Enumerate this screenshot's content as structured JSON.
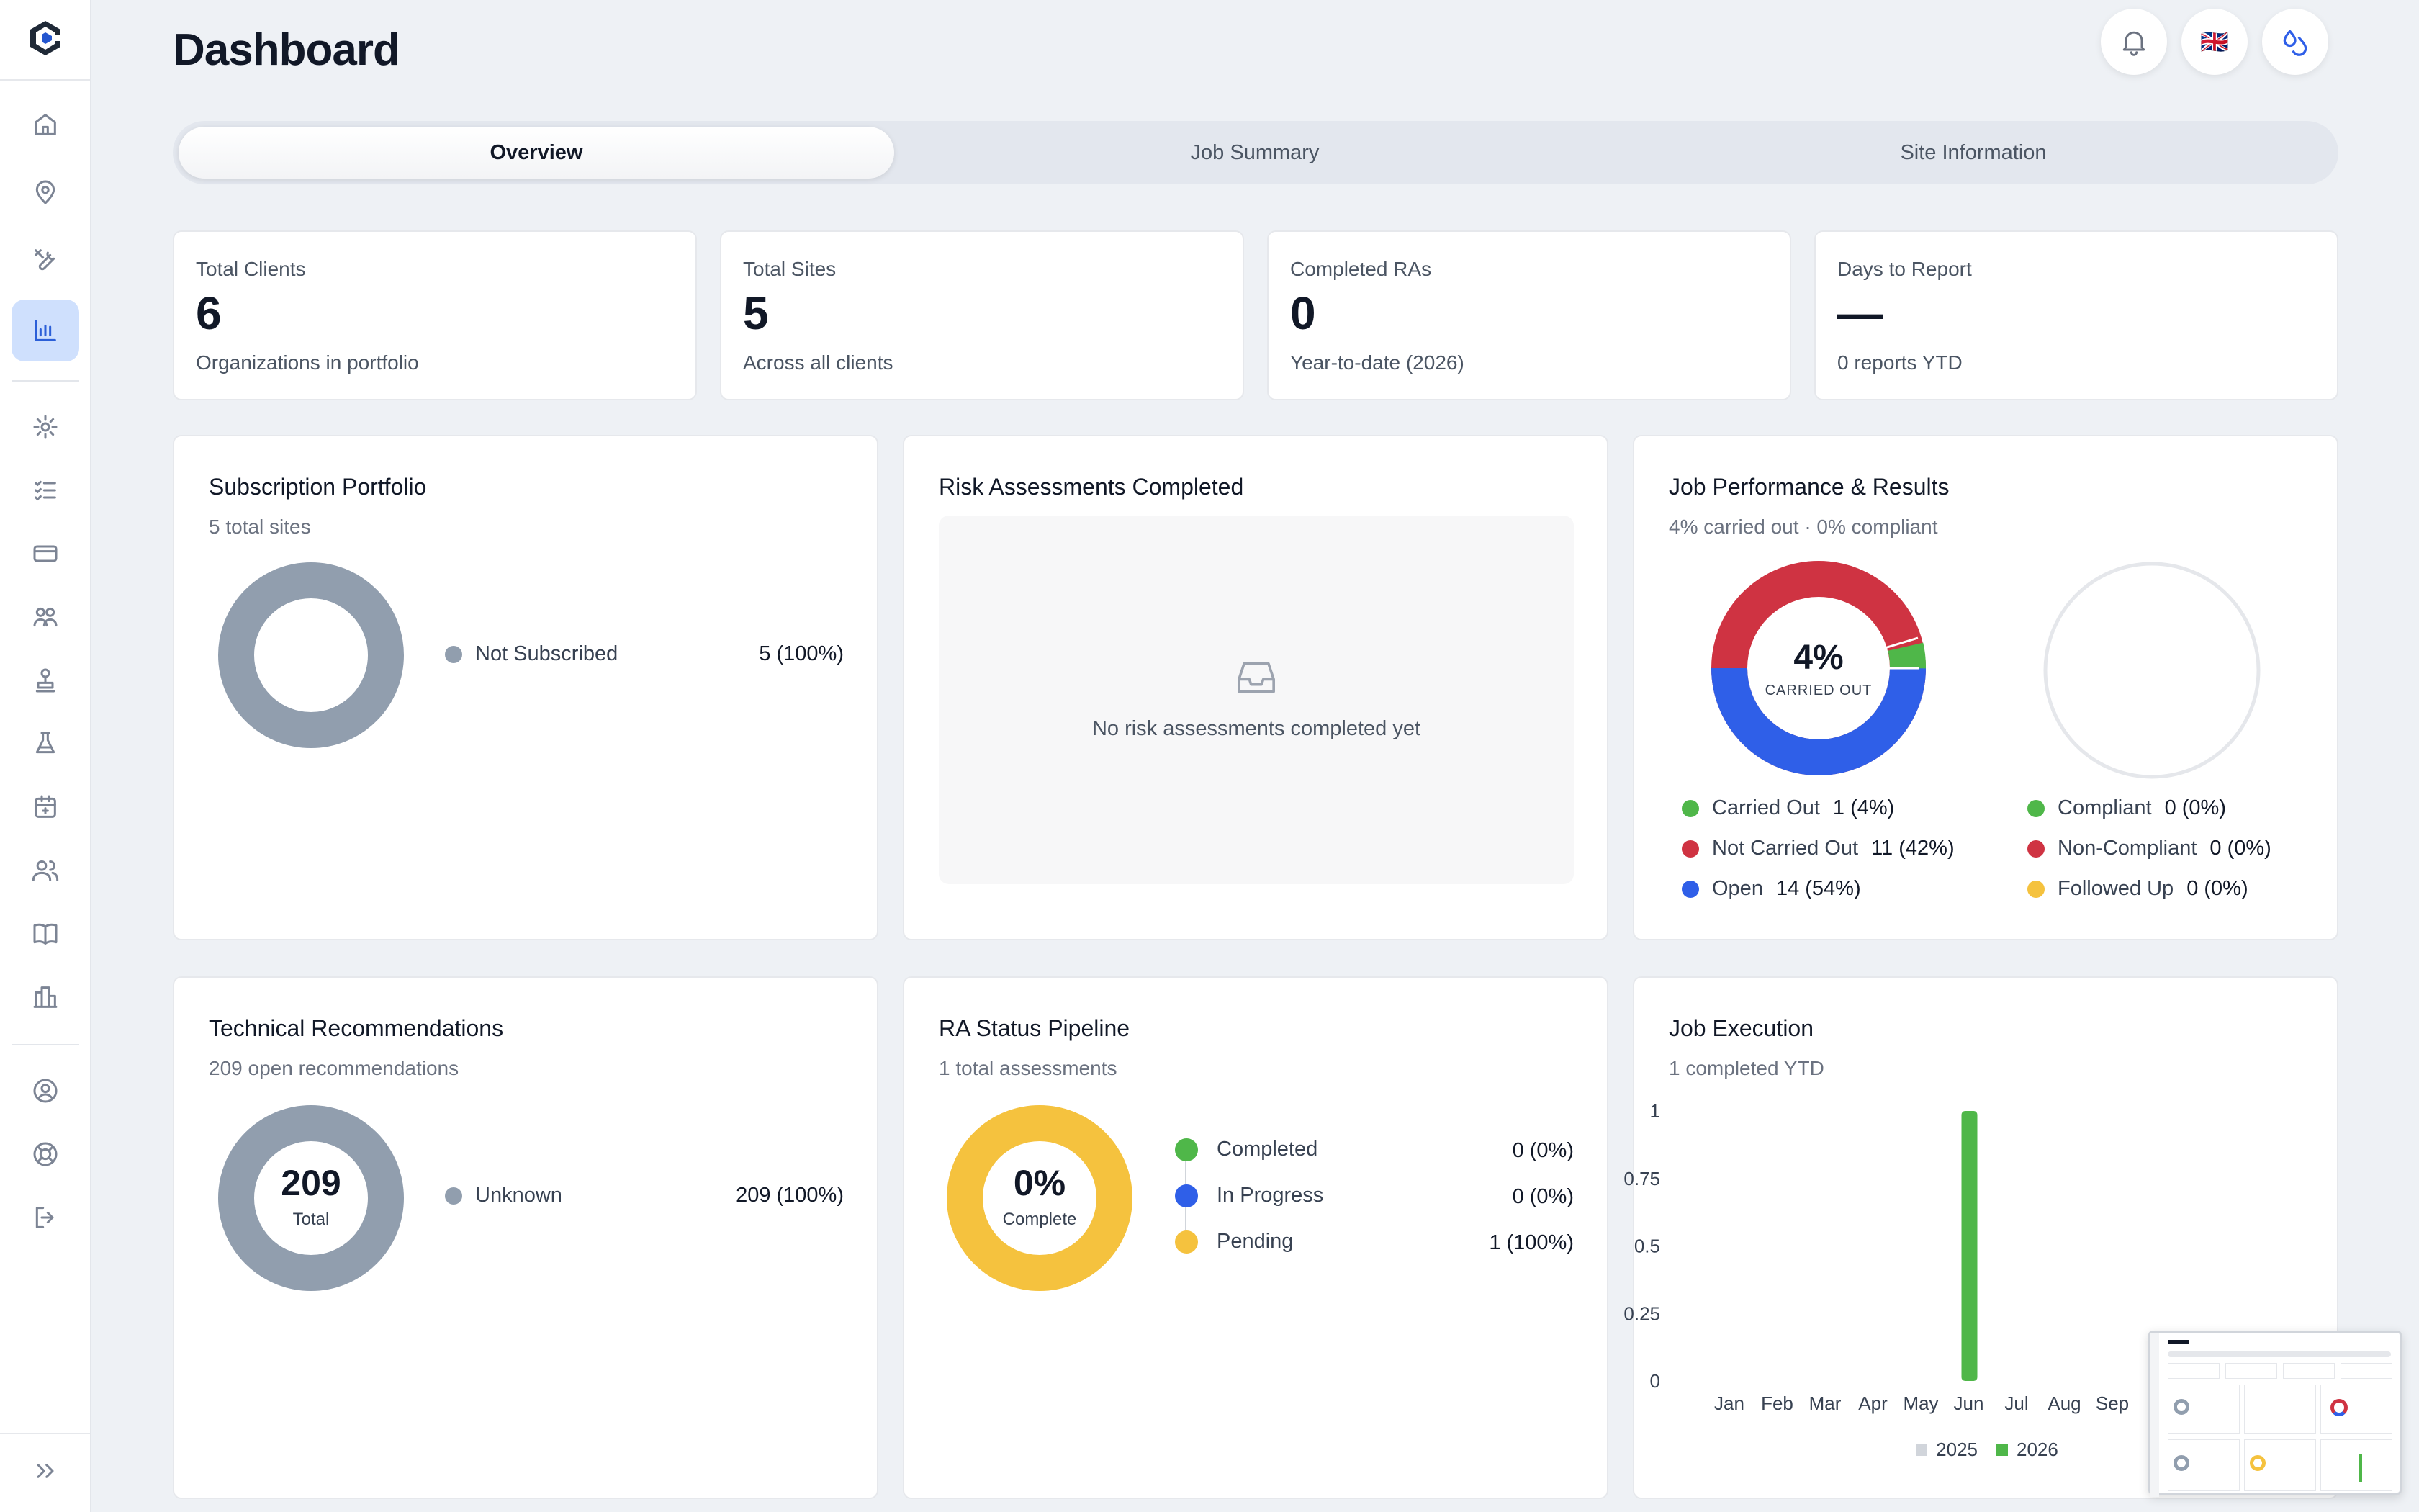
{
  "header": {
    "title": "Dashboard",
    "flag": "🇬🇧"
  },
  "tabs": [
    "Overview",
    "Job Summary",
    "Site Information"
  ],
  "stats": [
    {
      "label": "Total Clients",
      "value": "6",
      "sub": "Organizations in portfolio"
    },
    {
      "label": "Total Sites",
      "value": "5",
      "sub": "Across all clients"
    },
    {
      "label": "Completed RAs",
      "value": "0",
      "sub": "Year-to-date (2026)"
    },
    {
      "label": "Days to Report",
      "value": "—",
      "sub": "0 reports YTD"
    }
  ],
  "subscription": {
    "title": "Subscription Portfolio",
    "sub": "5 total sites",
    "legend": [
      {
        "label": "Not Subscribed",
        "value": "5 (100%)",
        "color": "#919eae"
      }
    ]
  },
  "risk": {
    "title": "Risk Assessments Completed",
    "empty": "No risk assessments completed yet"
  },
  "performance": {
    "title": "Job Performance & Results",
    "sub": "4% carried out · 0% compliant",
    "center_value": "4%",
    "center_label": "CARRIED OUT",
    "legend_left": [
      {
        "label": "Carried Out",
        "value": "1 (4%)",
        "color": "#4fb749"
      },
      {
        "label": "Not Carried Out",
        "value": "11 (42%)",
        "color": "#cf3342"
      },
      {
        "label": "Open",
        "value": "14 (54%)",
        "color": "#2f5fe8"
      }
    ],
    "legend_right": [
      {
        "label": "Compliant",
        "value": "0 (0%)",
        "color": "#4fb749"
      },
      {
        "label": "Non-Compliant",
        "value": "0 (0%)",
        "color": "#cf3342"
      },
      {
        "label": "Followed Up",
        "value": "0 (0%)",
        "color": "#f5c23e"
      }
    ]
  },
  "recommendations": {
    "title": "Technical Recommendations",
    "sub": "209 open recommendations",
    "center_value": "209",
    "center_label": "Total",
    "legend": [
      {
        "label": "Unknown",
        "value": "209 (100%)",
        "color": "#919eae"
      }
    ]
  },
  "pipeline": {
    "title": "RA Status Pipeline",
    "sub": "1 total assessments",
    "center_value": "0%",
    "center_label": "Complete",
    "legend": [
      {
        "label": "Completed",
        "value": "0 (0%)",
        "color": "#4fb749"
      },
      {
        "label": "In Progress",
        "value": "0 (0%)",
        "color": "#2f5fe8"
      },
      {
        "label": "Pending",
        "value": "1 (100%)",
        "color": "#f5c23e"
      }
    ]
  },
  "execution": {
    "title": "Job Execution",
    "sub": "1 completed YTD"
  },
  "chart_data": {
    "type": "bar",
    "title": "Job Execution",
    "categories": [
      "Jan",
      "Feb",
      "Mar",
      "Apr",
      "May",
      "Jun",
      "Jul",
      "Aug",
      "Sep"
    ],
    "y_ticks": [
      "1",
      "0.75",
      "0.5",
      "0.25",
      "0"
    ],
    "ylim": [
      0,
      1
    ],
    "series": [
      {
        "name": "2025",
        "color": "#d1d5db",
        "values": [
          0,
          0,
          0,
          0,
          0,
          0,
          0,
          0,
          0
        ]
      },
      {
        "name": "2026",
        "color": "#4fb749",
        "values": [
          0,
          0,
          0,
          0,
          0,
          1,
          0,
          0,
          0
        ]
      }
    ],
    "legend": "bottom-center"
  }
}
